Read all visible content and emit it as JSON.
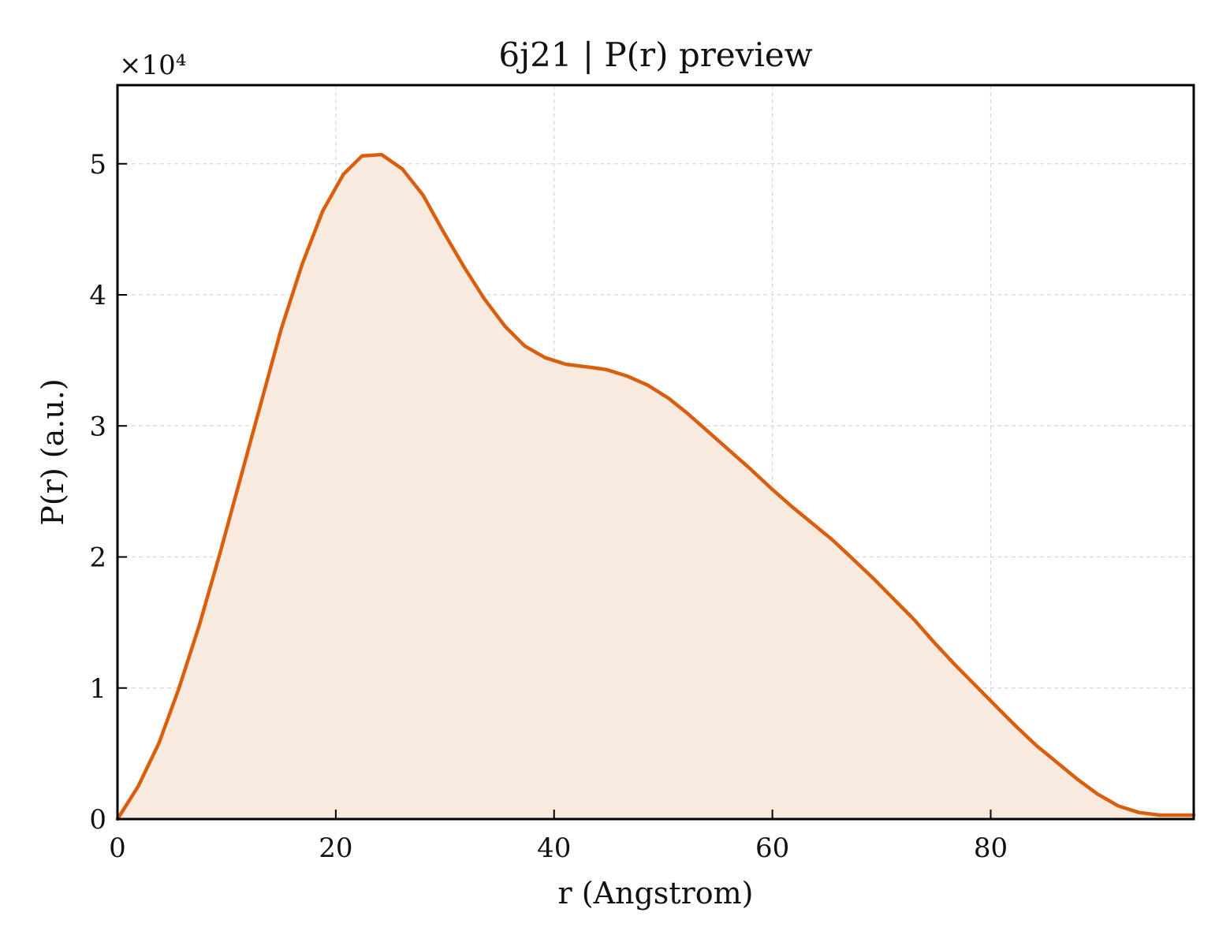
{
  "chart_data": {
    "type": "area",
    "title": "6j21 | P(r) preview",
    "xlabel": "r (Angstrom)",
    "ylabel": "P(r) (a.u.)",
    "y_scale_label": "×10⁴",
    "x_ticks": [
      "0",
      "20",
      "40",
      "60",
      "80"
    ],
    "y_ticks": [
      "0",
      "1",
      "2",
      "3",
      "4",
      "5"
    ],
    "xlim": [
      0,
      98.6
    ],
    "ylim": [
      0,
      5.6
    ],
    "grid": true,
    "colors": {
      "line": "#d95f0e",
      "fill": "#f8eadf",
      "grid": "#d6d6d6",
      "axis": "#000000"
    },
    "series": [
      {
        "x": [
          0,
          1.9,
          3.8,
          5.6,
          7.5,
          9.4,
          11.3,
          13.2,
          15.0,
          16.9,
          18.8,
          20.7,
          22.4,
          24.2,
          26.1,
          28.0,
          29.8,
          31.7,
          33.6,
          35.5,
          37.3,
          39.2,
          41.1,
          43.0,
          44.8,
          46.7,
          48.6,
          50.5,
          52.3,
          54.2,
          56.1,
          58.0,
          59.8,
          61.7,
          63.6,
          65.5,
          67.3,
          69.2,
          71.1,
          73.0,
          74.8,
          76.7,
          78.6,
          80.5,
          82.3,
          84.2,
          86.1,
          88.0,
          89.8,
          91.7,
          93.6,
          95.5,
          97.3,
          98.6
        ],
        "y": [
          0,
          0.25,
          0.58,
          0.99,
          1.48,
          2.03,
          2.61,
          3.19,
          3.74,
          4.23,
          4.64,
          4.92,
          5.06,
          5.07,
          4.96,
          4.76,
          4.49,
          4.22,
          3.97,
          3.76,
          3.61,
          3.52,
          3.47,
          3.45,
          3.43,
          3.38,
          3.31,
          3.21,
          3.09,
          2.95,
          2.81,
          2.67,
          2.53,
          2.39,
          2.26,
          2.13,
          1.99,
          1.84,
          1.68,
          1.52,
          1.35,
          1.18,
          1.02,
          0.86,
          0.71,
          0.56,
          0.43,
          0.3,
          0.19,
          0.1,
          0.05,
          0.03,
          0.03,
          0.03
        ]
      }
    ]
  }
}
